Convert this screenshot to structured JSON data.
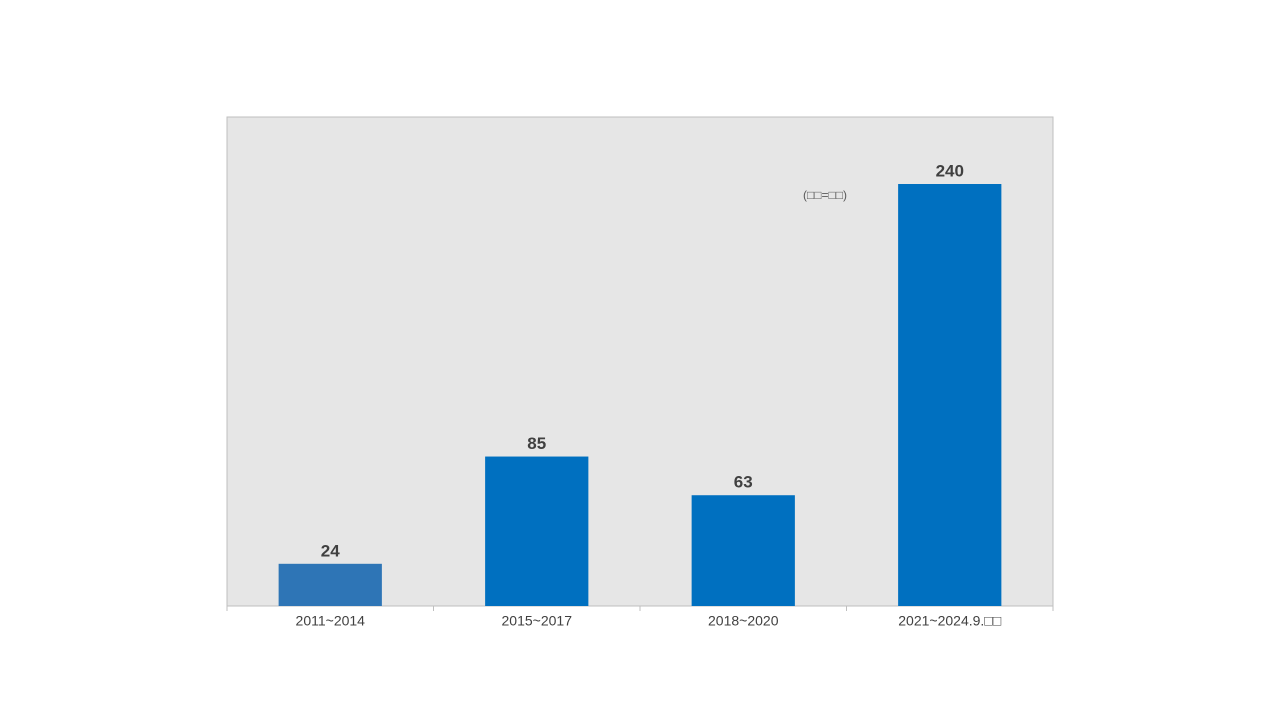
{
  "chart_data": {
    "type": "bar",
    "note": "(□□=□□)",
    "categories": [
      "2011~2014",
      "2015~2017",
      "2018~2020",
      "2021~2024.9.□□"
    ],
    "values": [
      24,
      85,
      63,
      240
    ],
    "colors": [
      "#2e75b6",
      "#0070c0",
      "#0070c0",
      "#0070c0"
    ]
  }
}
